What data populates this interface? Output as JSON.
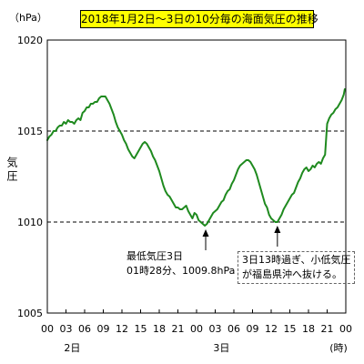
{
  "chart_data": {
    "type": "line",
    "title": "2018年1月2日～3日の10分毎の海面気圧の推移",
    "ylabel": "気圧",
    "y_unit": "（hPa）",
    "x_unit": "(時)",
    "ylim": [
      1005,
      1020
    ],
    "yticks": [
      1020,
      1015,
      1010,
      1005
    ],
    "xlim": [
      "2日00:00",
      "4日00:00"
    ],
    "xtick_labels": [
      "00",
      "03",
      "06",
      "09",
      "12",
      "15",
      "18",
      "21",
      "00",
      "03",
      "06",
      "09",
      "12",
      "15",
      "18",
      "21",
      "00"
    ],
    "day_labels": [
      "2日",
      "3日"
    ],
    "reference_lines": [
      1015,
      1010
    ],
    "grid": false,
    "x": [
      "2日00:00",
      "2日00:20",
      "2日00:40",
      "2日01:00",
      "2日01:20",
      "2日01:40",
      "2日02:00",
      "2日02:20",
      "2日02:40",
      "2日03:00",
      "2日03:20",
      "2日03:40",
      "2日04:00",
      "2日04:20",
      "2日04:40",
      "2日05:00",
      "2日05:20",
      "2日05:40",
      "2日06:00",
      "2日06:20",
      "2日06:40",
      "2日07:00",
      "2日07:20",
      "2日07:40",
      "2日08:00",
      "2日08:20",
      "2日08:40",
      "2日09:00",
      "2日09:20",
      "2日09:40",
      "2日10:00",
      "2日10:20",
      "2日10:40",
      "2日11:00",
      "2日11:20",
      "2日11:40",
      "2日12:00",
      "2日12:20",
      "2日12:40",
      "2日13:00",
      "2日13:20",
      "2日13:40",
      "2日14:00",
      "2日14:20",
      "2日14:40",
      "2日15:00",
      "2日15:20",
      "2日15:40",
      "2日16:00",
      "2日16:20",
      "2日16:40",
      "2日17:00",
      "2日17:20",
      "2日17:40",
      "2日18:00",
      "2日18:20",
      "2日18:40",
      "2日19:00",
      "2日19:20",
      "2日19:40",
      "2日20:00",
      "2日20:20",
      "2日20:40",
      "2日21:00",
      "2日21:20",
      "2日21:40",
      "2日22:00",
      "2日22:20",
      "2日22:40",
      "2日23:00",
      "2日23:20",
      "2日23:40",
      "3日00:00",
      "3日00:20",
      "3日00:40",
      "3日01:00",
      "3日01:20",
      "3日01:40",
      "3日02:00",
      "3日02:20",
      "3日02:40",
      "3日03:00",
      "3日03:20",
      "3日03:40",
      "3日04:00",
      "3日04:20",
      "3日04:40",
      "3日05:00",
      "3日05:20",
      "3日05:40",
      "3日06:00",
      "3日06:20",
      "3日06:40",
      "3日07:00",
      "3日07:20",
      "3日07:40",
      "3日08:00",
      "3日08:20",
      "3日08:40",
      "3日09:00",
      "3日09:20",
      "3日09:40",
      "3日10:00",
      "3日10:20",
      "3日10:40",
      "3日11:00",
      "3日11:20",
      "3日11:40",
      "3日12:00",
      "3日12:20",
      "3日12:40",
      "3日13:00",
      "3日13:20",
      "3日13:40",
      "3日14:00",
      "3日14:20",
      "3日14:40",
      "3日15:00",
      "3日15:20",
      "3日15:40",
      "3日16:00",
      "3日16:20",
      "3日16:40",
      "3日17:00",
      "3日17:20",
      "3日17:40",
      "3日18:00",
      "3日18:20",
      "3日18:40",
      "3日19:00",
      "3日19:20",
      "3日19:40",
      "3日20:00",
      "3日20:20",
      "3日20:40",
      "3日21:00",
      "3日21:20",
      "3日21:40",
      "3日22:00",
      "3日22:20",
      "3日22:40",
      "3日23:00",
      "3日23:20",
      "3日23:40",
      "3日23:50"
    ],
    "series": [
      {
        "color": "#1f8a1f",
        "values": [
          1014.5,
          1014.7,
          1014.8,
          1015.0,
          1015.0,
          1015.2,
          1015.3,
          1015.3,
          1015.5,
          1015.4,
          1015.6,
          1015.5,
          1015.5,
          1015.4,
          1015.6,
          1015.7,
          1015.6,
          1016.0,
          1016.1,
          1016.3,
          1016.3,
          1016.5,
          1016.5,
          1016.6,
          1016.6,
          1016.8,
          1016.9,
          1016.9,
          1016.9,
          1016.7,
          1016.5,
          1016.2,
          1015.9,
          1015.5,
          1015.2,
          1015.0,
          1014.8,
          1014.5,
          1014.3,
          1014.0,
          1013.8,
          1013.6,
          1013.5,
          1013.7,
          1013.9,
          1014.1,
          1014.3,
          1014.4,
          1014.3,
          1014.1,
          1013.9,
          1013.6,
          1013.4,
          1013.1,
          1012.8,
          1012.4,
          1012.0,
          1011.7,
          1011.5,
          1011.4,
          1011.2,
          1011.0,
          1010.8,
          1010.8,
          1010.7,
          1010.7,
          1010.8,
          1010.9,
          1010.6,
          1010.4,
          1010.2,
          1010.5,
          1010.4,
          1010.1,
          1010.0,
          1009.9,
          1009.8,
          1009.9,
          1010.1,
          1010.3,
          1010.5,
          1010.6,
          1010.7,
          1010.9,
          1011.1,
          1011.2,
          1011.5,
          1011.7,
          1011.8,
          1012.1,
          1012.3,
          1012.6,
          1012.9,
          1013.1,
          1013.2,
          1013.3,
          1013.4,
          1013.4,
          1013.3,
          1013.1,
          1012.9,
          1012.6,
          1012.2,
          1011.8,
          1011.4,
          1011.0,
          1010.8,
          1010.4,
          1010.2,
          1010.1,
          1010.0,
          1010.0,
          1010.2,
          1010.4,
          1010.7,
          1010.9,
          1011.1,
          1011.3,
          1011.5,
          1011.6,
          1011.9,
          1012.2,
          1012.4,
          1012.7,
          1012.9,
          1013.0,
          1012.8,
          1012.9,
          1013.1,
          1013.0,
          1013.2,
          1013.3,
          1013.2,
          1013.5,
          1013.7,
          1015.4,
          1015.7,
          1015.9,
          1016.0,
          1016.2,
          1016.3,
          1016.5,
          1016.7,
          1017.0,
          1017.3
        ]
      }
    ],
    "annotations": [
      {
        "lines": [
          "最低気圧3日",
          "01時28分、1009.8hPa"
        ],
        "arrow_to": {
          "x": "3日01:28",
          "y": 1009.8
        },
        "boxed": false
      },
      {
        "lines": [
          "3日13時過ぎ、小低気圧",
          "が福島県沖へ抜ける。"
        ],
        "arrow_to": {
          "x": "3日13:00",
          "y": 1010.0
        },
        "boxed": true
      }
    ]
  }
}
